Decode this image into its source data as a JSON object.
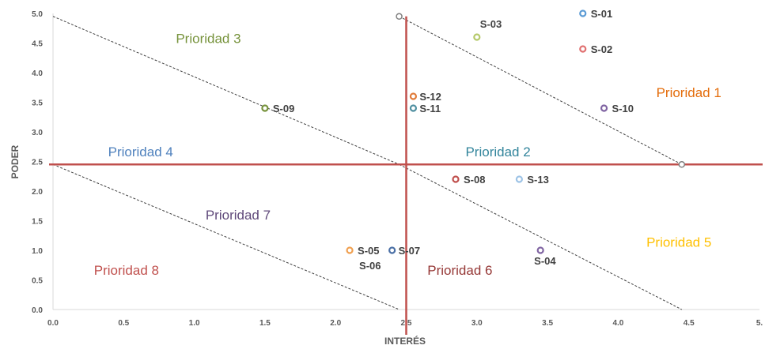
{
  "chart_data": {
    "type": "scatter",
    "xlabel": "INTERÉS",
    "ylabel": "PODER",
    "xlim": [
      0,
      5
    ],
    "ylim": [
      0,
      5
    ],
    "x_ticks": [
      "0.0",
      "0.5",
      "1.0",
      "1.5",
      "2.0",
      "2.5",
      "3.0",
      "3.5",
      "4.0",
      "4.5",
      "5."
    ],
    "y_ticks": [
      "0.0",
      "0.5",
      "1.0",
      "1.5",
      "2.0",
      "2.5",
      "3.0",
      "3.5",
      "4.0",
      "4.5",
      "5.0"
    ],
    "grid": false,
    "points": [
      {
        "label": "S-01",
        "x": 3.75,
        "y": 5.0,
        "color": "#5b9bd5"
      },
      {
        "label": "S-02",
        "x": 3.75,
        "y": 4.4,
        "color": "#e07070"
      },
      {
        "label": "S-03",
        "x": 3.0,
        "y": 4.6,
        "color": "#b5c96a"
      },
      {
        "label": "S-04",
        "x": 3.45,
        "y": 1.0,
        "color": "#8064a2"
      },
      {
        "label": "S-05",
        "x": 2.1,
        "y": 1.0,
        "color": "#f0a050"
      },
      {
        "label": "S-06",
        "x": 2.1,
        "y": 1.0,
        "color": "#f0a050"
      },
      {
        "label": "S-07",
        "x": 2.4,
        "y": 1.0,
        "color": "#4a6fa5"
      },
      {
        "label": "S-08",
        "x": 2.85,
        "y": 2.2,
        "color": "#c0504d"
      },
      {
        "label": "S-09",
        "x": 1.5,
        "y": 3.4,
        "color": "#77933c"
      },
      {
        "label": "S-10",
        "x": 3.9,
        "y": 3.4,
        "color": "#8064a2"
      },
      {
        "label": "S-11",
        "x": 2.55,
        "y": 3.4,
        "color": "#4f8fa0"
      },
      {
        "label": "S-12",
        "x": 2.55,
        "y": 3.6,
        "color": "#e07b39"
      },
      {
        "label": "S-13",
        "x": 3.3,
        "y": 2.2,
        "color": "#9dc3e6"
      }
    ],
    "markers": [
      {
        "x": 2.45,
        "y": 4.95,
        "color": "#7f7f7f"
      },
      {
        "x": 4.45,
        "y": 2.45,
        "color": "#7f7f7f"
      }
    ],
    "reference_lines": {
      "vertical_x": 2.5,
      "horizontal_y": 2.45,
      "color": "#c0504d"
    },
    "diagonals": [
      {
        "from": [
          0.0,
          4.95
        ],
        "to": [
          2.45,
          2.45
        ]
      },
      {
        "from": [
          2.45,
          4.95
        ],
        "to": [
          4.45,
          2.45
        ]
      },
      {
        "from": [
          0.0,
          2.45
        ],
        "to": [
          2.45,
          0.0
        ]
      },
      {
        "from": [
          2.45,
          2.45
        ],
        "to": [
          4.45,
          0.0
        ]
      }
    ],
    "regions": [
      {
        "label": "Prioridad 1",
        "x": 4.5,
        "y": 3.67,
        "color": "#e46c0a"
      },
      {
        "label": "Prioridad 2",
        "x": 3.15,
        "y": 2.67,
        "color": "#31849b"
      },
      {
        "label": "Prioridad 3",
        "x": 1.1,
        "y": 4.58,
        "color": "#77933c"
      },
      {
        "label": "Prioridad 4",
        "x": 0.62,
        "y": 2.67,
        "color": "#4f81bd"
      },
      {
        "label": "Prioridad 5",
        "x": 4.43,
        "y": 1.14,
        "color": "#ffc000"
      },
      {
        "label": "Prioridad 6",
        "x": 2.88,
        "y": 0.67,
        "color": "#953735"
      },
      {
        "label": "Prioridad 7",
        "x": 1.31,
        "y": 1.6,
        "color": "#604a7b"
      },
      {
        "label": "Prioridad 8",
        "x": 0.52,
        "y": 0.67,
        "color": "#c0504d"
      }
    ]
  }
}
